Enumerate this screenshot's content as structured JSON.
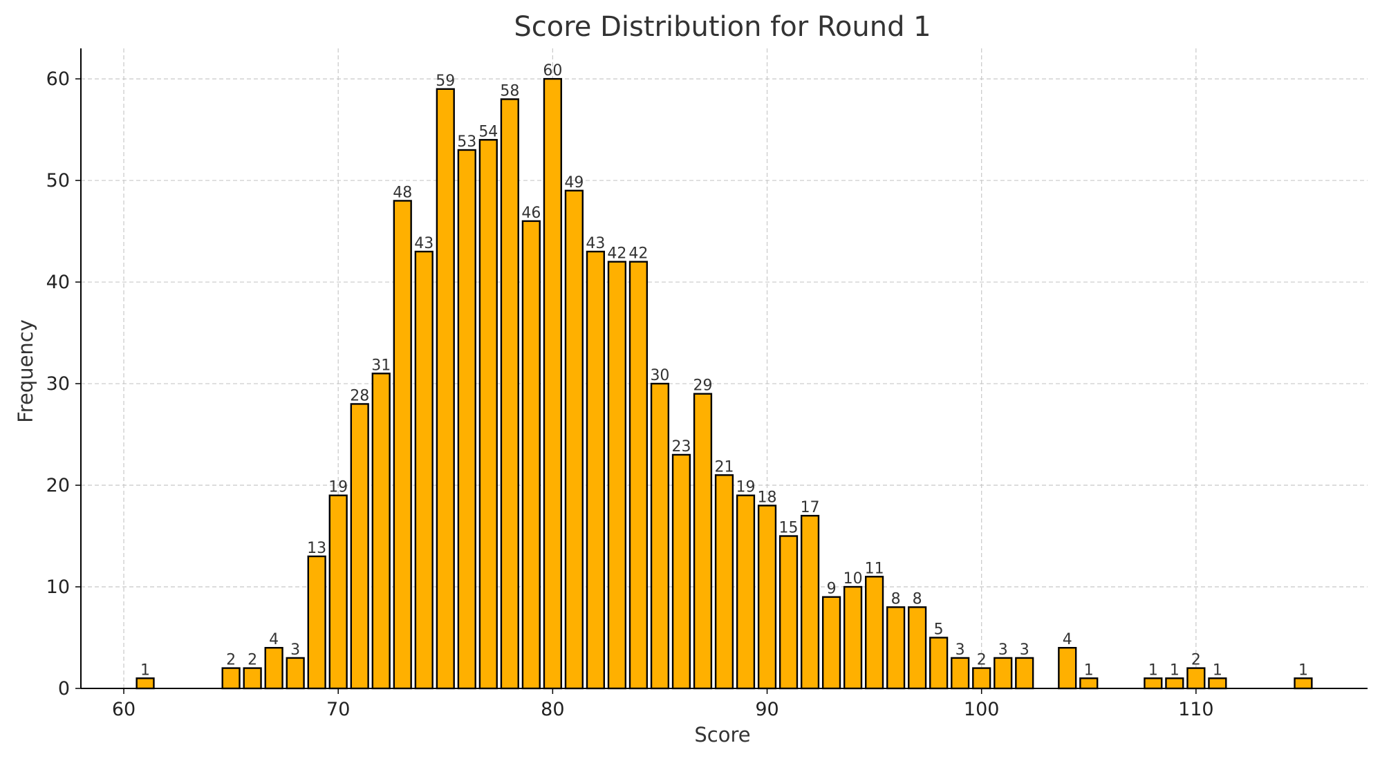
{
  "chart_data": {
    "type": "bar",
    "title": "Score Distribution for Round 1",
    "xlabel": "Score",
    "ylabel": "Frequency",
    "bar_color": "#FFB000",
    "edge_color": "#000000",
    "grid": true,
    "xlim": [
      58,
      118
    ],
    "ylim": [
      0,
      63
    ],
    "xticks": [
      60,
      70,
      80,
      90,
      100,
      110
    ],
    "yticks": [
      0,
      10,
      20,
      30,
      40,
      50,
      60
    ],
    "x": [
      61,
      65,
      66,
      67,
      68,
      69,
      70,
      71,
      72,
      73,
      74,
      75,
      76,
      77,
      78,
      79,
      80,
      81,
      82,
      83,
      84,
      85,
      86,
      87,
      88,
      89,
      90,
      91,
      92,
      93,
      94,
      95,
      96,
      97,
      98,
      99,
      100,
      101,
      102,
      104,
      105,
      108,
      109,
      110,
      111,
      115
    ],
    "values": [
      1,
      2,
      2,
      4,
      3,
      13,
      19,
      28,
      31,
      48,
      43,
      59,
      53,
      54,
      58,
      46,
      60,
      49,
      43,
      42,
      42,
      30,
      23,
      29,
      21,
      19,
      18,
      15,
      17,
      9,
      10,
      11,
      8,
      8,
      5,
      3,
      2,
      3,
      3,
      4,
      1,
      1,
      1,
      2,
      1,
      1
    ]
  }
}
